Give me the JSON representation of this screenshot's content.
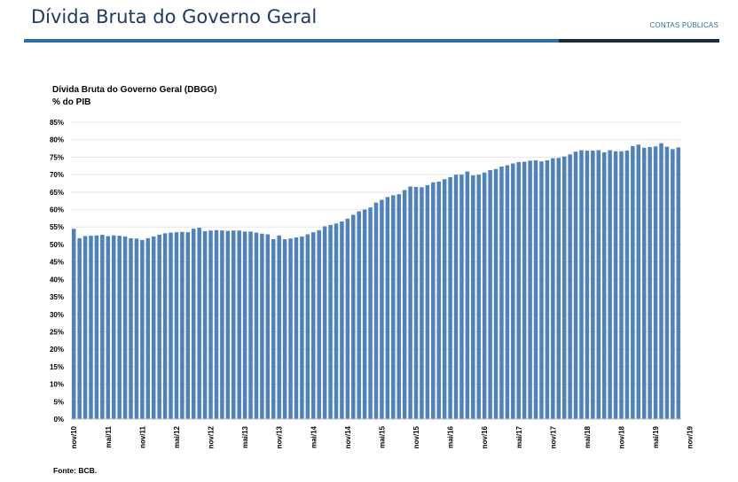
{
  "header": {
    "title": "Dívida Bruta do Governo Geral",
    "section": "CONTAS PÚBLICAS"
  },
  "colors": {
    "bar": "#4f81bd",
    "accent_rule": "#2e6ea3",
    "dark_rule": "#1c2b3a"
  },
  "chart_data": {
    "type": "bar",
    "title": "Dívida Bruta do Governo Geral (DBGG)",
    "subtitle": "% do PIB",
    "ylim": [
      0,
      85
    ],
    "yticks": [
      "0%",
      "5%",
      "10%",
      "15%",
      "20%",
      "25%",
      "30%",
      "35%",
      "40%",
      "45%",
      "50%",
      "55%",
      "60%",
      "65%",
      "70%",
      "75%",
      "80%",
      "85%"
    ],
    "x_tick_labels": [
      "nov/10",
      "mai/11",
      "nov/11",
      "mai/12",
      "nov/12",
      "mai/13",
      "nov/13",
      "mai/14",
      "nov/14",
      "mai/15",
      "nov/15",
      "mai/16",
      "nov/16",
      "mai/17",
      "nov/17",
      "mai/18",
      "nov/18",
      "mai/19",
      "nov/19"
    ],
    "grid": true,
    "legend": "none",
    "series": [
      {
        "values": [
          54.5,
          51.8,
          52.4,
          52.5,
          52.6,
          52.8,
          52.4,
          52.6,
          52.5,
          52.3,
          51.8,
          51.7,
          51.3,
          51.8,
          52.3,
          52.8,
          53.2,
          53.4,
          53.5,
          53.6,
          53.5,
          54.5,
          54.8,
          53.8,
          54.0,
          54.1,
          54.0,
          53.9,
          54.0,
          54.0,
          53.7,
          53.7,
          53.4,
          53.1,
          52.9,
          51.5,
          52.6,
          51.5,
          51.7,
          52.0,
          52.3,
          52.9,
          53.5,
          54.1,
          55.2,
          55.6,
          56.0,
          56.6,
          57.4,
          58.5,
          59.5,
          60.0,
          60.6,
          62.0,
          62.8,
          63.6,
          64.1,
          64.4,
          65.6,
          66.6,
          66.5,
          66.4,
          67.0,
          67.8,
          68.0,
          68.7,
          69.3,
          70.0,
          70.0,
          70.9,
          69.8,
          70.0,
          70.6,
          71.3,
          71.6,
          72.3,
          72.7,
          73.2,
          73.6,
          73.7,
          74.0,
          74.1,
          73.8,
          74.1,
          74.7,
          74.8,
          75.2,
          75.8,
          76.6,
          77.0,
          76.9,
          76.9,
          77.0,
          76.4,
          77.0,
          76.7,
          76.7,
          76.9,
          78.2,
          78.6,
          77.7,
          77.9,
          78.1,
          79.0,
          78.0,
          77.3,
          77.8
        ]
      }
    ]
  },
  "footer": {
    "source": "Fonte: BCB."
  }
}
